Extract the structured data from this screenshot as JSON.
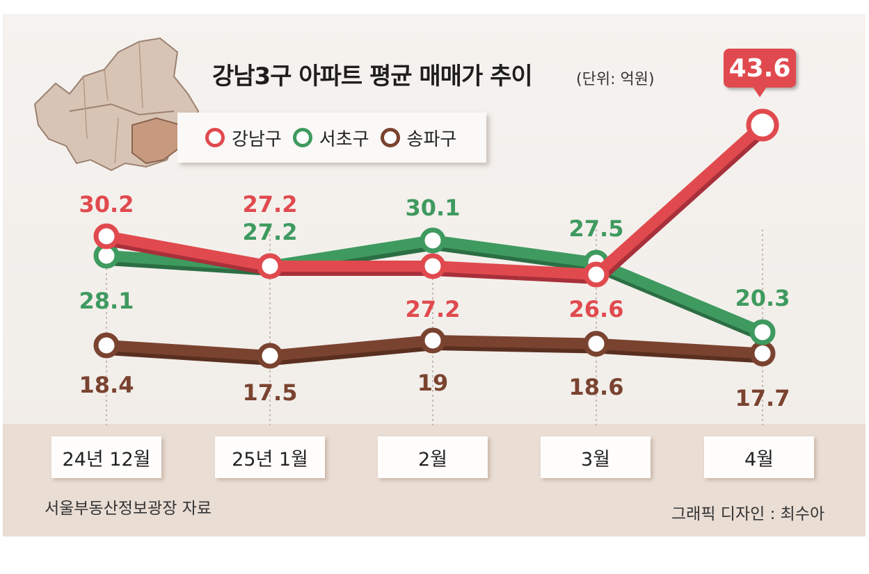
{
  "chart_data": {
    "type": "line",
    "title": "강남3구 아파트 평균 매매가 추이",
    "unit": "(단위: 억원)",
    "categories": [
      "24년 12월",
      "25년 1월",
      "2월",
      "3월",
      "4월"
    ],
    "series": [
      {
        "name": "강남구",
        "color": "#e04a4e",
        "values": [
          30.2,
          27.2,
          27.2,
          26.6,
          43.6
        ],
        "labels": [
          "30.2",
          "27.2",
          "27.2",
          "26.6",
          "43.6"
        ]
      },
      {
        "name": "서초구",
        "color": "#3f9a5f",
        "values": [
          28.1,
          27.2,
          30.1,
          27.5,
          20.3
        ],
        "labels": [
          "28.1",
          "27.2",
          "30.1",
          "27.5",
          "20.3"
        ]
      },
      {
        "name": "송파구",
        "color": "#7a4330",
        "values": [
          18.4,
          17.5,
          19,
          18.6,
          17.7
        ],
        "labels": [
          "18.4",
          "17.5",
          "19",
          "18.6",
          "17.7"
        ]
      }
    ],
    "legend_position": "top",
    "highlight": "43.6"
  },
  "source": "서울부동산정보광장 자료",
  "credit": "그래픽 디자인 : 최수아"
}
